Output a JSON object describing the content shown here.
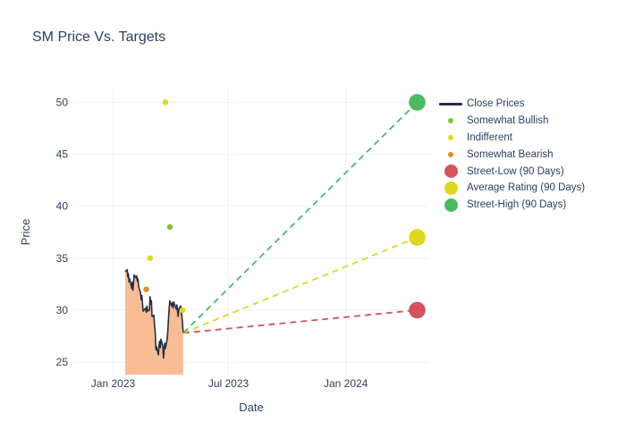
{
  "title": "SM Price Vs. Targets",
  "colors": {
    "text": "#2a3f5f",
    "gridline": "#ebf0f8",
    "background": "#ffffff",
    "close_line": "#252f44",
    "close_fill": "#f8bd95",
    "somewhat_bullish": "#82c43c",
    "indifferent": "#ded920",
    "somewhat_bearish": "#dd8e2a",
    "street_low": "#d4525e",
    "average_rating": "#ddd81e",
    "street_high": "#4bbb62"
  },
  "axes": {
    "x_label": "Date",
    "y_label": "Price"
  },
  "chart_data": {
    "type": "line",
    "title": "SM Price Vs. Targets",
    "xlabel": "Date",
    "ylabel": "Price",
    "grid": true,
    "legend_position": "right",
    "ylim": [
      23.8,
      51.3
    ],
    "xlim": [
      "2022-10-30",
      "2024-05-10"
    ],
    "yticks": [
      25,
      30,
      35,
      40,
      45,
      50
    ],
    "xticks": [
      {
        "date": "2023-01-01",
        "label": "Jan 2023"
      },
      {
        "date": "2023-07-01",
        "label": "Jul 2023"
      },
      {
        "date": "2024-01-01",
        "label": "Jan 2024"
      }
    ],
    "series": [
      {
        "name": "Close Prices",
        "kind": "line-fill",
        "color_key": "close_line",
        "fill_key": "close_fill",
        "points": [
          [
            "2023-01-20",
            33.7
          ],
          [
            "2023-01-23",
            33.9
          ],
          [
            "2023-01-24",
            33.2
          ],
          [
            "2023-01-25",
            33.5
          ],
          [
            "2023-01-26",
            32.7
          ],
          [
            "2023-01-27",
            33.0
          ],
          [
            "2023-01-30",
            32.1
          ],
          [
            "2023-01-31",
            32.7
          ],
          [
            "2023-02-01",
            31.9
          ],
          [
            "2023-02-02",
            32.6
          ],
          [
            "2023-02-03",
            33.4
          ],
          [
            "2023-02-06",
            33.1
          ],
          [
            "2023-02-07",
            33.3
          ],
          [
            "2023-02-08",
            32.8
          ],
          [
            "2023-02-09",
            33.0
          ],
          [
            "2023-02-10",
            32.3
          ],
          [
            "2023-02-13",
            31.6
          ],
          [
            "2023-02-14",
            31.0
          ],
          [
            "2023-02-15",
            31.4
          ],
          [
            "2023-02-16",
            30.7
          ],
          [
            "2023-02-17",
            29.9
          ],
          [
            "2023-02-21",
            30.2
          ],
          [
            "2023-02-22",
            29.8
          ],
          [
            "2023-02-23",
            30.4
          ],
          [
            "2023-02-24",
            29.9
          ],
          [
            "2023-02-27",
            30.0
          ],
          [
            "2023-02-28",
            31.3
          ],
          [
            "2023-03-01",
            30.6
          ],
          [
            "2023-03-02",
            30.9
          ],
          [
            "2023-03-03",
            29.4
          ],
          [
            "2023-03-06",
            29.5
          ],
          [
            "2023-03-07",
            28.5
          ],
          [
            "2023-03-08",
            28.0
          ],
          [
            "2023-03-09",
            26.2
          ],
          [
            "2023-03-10",
            26.5
          ],
          [
            "2023-03-13",
            25.7
          ],
          [
            "2023-03-14",
            26.6
          ],
          [
            "2023-03-15",
            27.0
          ],
          [
            "2023-03-16",
            26.4
          ],
          [
            "2023-03-17",
            27.2
          ],
          [
            "2023-03-20",
            26.5
          ],
          [
            "2023-03-21",
            25.4
          ],
          [
            "2023-03-22",
            26.1
          ],
          [
            "2023-03-23",
            26.8
          ],
          [
            "2023-03-24",
            26.3
          ],
          [
            "2023-03-27",
            27.3
          ],
          [
            "2023-03-28",
            28.2
          ],
          [
            "2023-03-29",
            29.3
          ],
          [
            "2023-03-30",
            30.2
          ],
          [
            "2023-03-31",
            30.9
          ],
          [
            "2023-04-03",
            30.4
          ],
          [
            "2023-04-04",
            30.7
          ],
          [
            "2023-04-05",
            30.2
          ],
          [
            "2023-04-06",
            30.8
          ],
          [
            "2023-04-10",
            30.1
          ],
          [
            "2023-04-11",
            30.5
          ],
          [
            "2023-04-12",
            29.9
          ],
          [
            "2023-04-13",
            29.4
          ],
          [
            "2023-04-14",
            30.1
          ],
          [
            "2023-04-17",
            30.4
          ],
          [
            "2023-04-18",
            29.8
          ],
          [
            "2023-04-19",
            29.3
          ],
          [
            "2023-04-20",
            28.6
          ],
          [
            "2023-04-21",
            27.8
          ]
        ]
      },
      {
        "name": "Somewhat Bullish",
        "kind": "scatter",
        "color_key": "somewhat_bullish",
        "points": [
          [
            "2023-03-31",
            38
          ]
        ]
      },
      {
        "name": "Indifferent",
        "kind": "scatter",
        "color_key": "indifferent",
        "points": [
          [
            "2023-02-28",
            35
          ],
          [
            "2023-03-24",
            50
          ],
          [
            "2023-04-20",
            30
          ]
        ]
      },
      {
        "name": "Somewhat Bearish",
        "kind": "scatter",
        "color_key": "somewhat_bearish",
        "points": [
          [
            "2023-02-22",
            32
          ]
        ]
      },
      {
        "name": "Street-Low (90 Days)",
        "kind": "target",
        "color_key": "street_low",
        "point": [
          "2024-04-22",
          30
        ]
      },
      {
        "name": "Average Rating (90 Days)",
        "kind": "target",
        "color_key": "average_rating",
        "point": [
          "2024-04-22",
          37
        ]
      },
      {
        "name": "Street-High (90 Days)",
        "kind": "target",
        "color_key": "street_high",
        "point": [
          "2024-04-22",
          50
        ]
      }
    ]
  },
  "legend": {
    "items": [
      {
        "label": "Close Prices",
        "marker": "line",
        "color_key": "close_line"
      },
      {
        "label": "Somewhat Bullish",
        "marker": "dot-small",
        "color_key": "somewhat_bullish"
      },
      {
        "label": "Indifferent",
        "marker": "dot-small",
        "color_key": "indifferent"
      },
      {
        "label": "Somewhat Bearish",
        "marker": "dot-small",
        "color_key": "somewhat_bearish"
      },
      {
        "label": "Street-Low (90 Days)",
        "marker": "dot-large",
        "color_key": "street_low"
      },
      {
        "label": "Average Rating (90 Days)",
        "marker": "dot-large",
        "color_key": "average_rating"
      },
      {
        "label": "Street-High (90 Days)",
        "marker": "dot-large",
        "color_key": "street_high"
      }
    ]
  }
}
